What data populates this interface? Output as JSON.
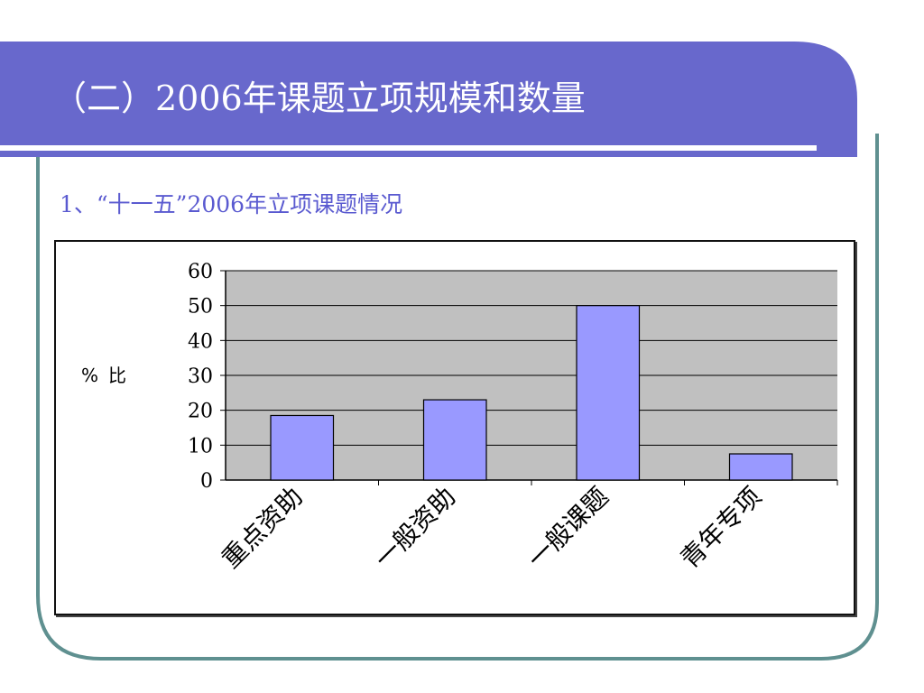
{
  "slide": {
    "title": "（二）2006年课题立项规模和数量",
    "subtitle": "1、“十一五”2006年立项课题情况"
  },
  "colors": {
    "title_band": "#6868cc",
    "frame_border": "#5f9090",
    "plot_bg": "#c0c0c0",
    "bar_fill": "#9999ff"
  },
  "chart_data": {
    "type": "bar",
    "categories": [
      "重点资助",
      "一般资助",
      "一般课题",
      "青年专项"
    ],
    "values": [
      18.5,
      23,
      50,
      7.5
    ],
    "ylabel_parts": [
      "%",
      "比"
    ],
    "yticks": [
      0,
      10,
      20,
      30,
      40,
      50,
      60
    ],
    "ylim": [
      0,
      60
    ],
    "grid": true,
    "legend": "none"
  }
}
